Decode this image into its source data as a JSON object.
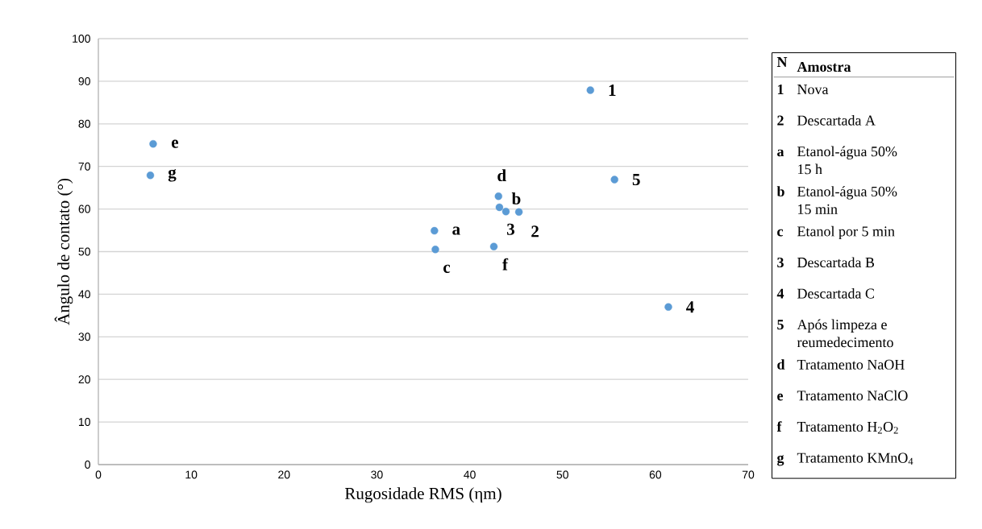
{
  "chart_data": {
    "type": "scatter",
    "xlabel": "Rugosidade RMS (ηm)",
    "ylabel": "Ângulo de contato (°)",
    "x": [
      53.0,
      45.3,
      43.9,
      61.4,
      55.6,
      36.2,
      43.2,
      36.3,
      43.1,
      5.9,
      42.6,
      5.6
    ],
    "values": [
      87.9,
      59.3,
      59.4,
      37.0,
      66.9,
      54.9,
      60.4,
      50.5,
      63.0,
      75.3,
      51.2,
      67.9
    ],
    "color": "#5b9bd5",
    "xlim": [
      0,
      70
    ],
    "ylim": [
      0,
      100
    ],
    "xticks": [
      0,
      10,
      20,
      30,
      40,
      50,
      60,
      70
    ],
    "yticks": [
      0,
      10,
      20,
      30,
      40,
      50,
      60,
      70,
      80,
      90,
      100
    ],
    "grid": "y",
    "annotations": [
      {
        "text": "1",
        "x": 53.0,
        "y": 87.9
      },
      {
        "text": "2",
        "x": 45.3,
        "y": 59.3
      },
      {
        "text": "3",
        "x": 43.9,
        "y": 59.4
      },
      {
        "text": "4",
        "x": 61.4,
        "y": 37.0
      },
      {
        "text": "5",
        "x": 55.6,
        "y": 66.9
      },
      {
        "text": "a",
        "x": 36.2,
        "y": 54.9
      },
      {
        "text": "b",
        "x": 43.2,
        "y": 60.4
      },
      {
        "text": "c",
        "x": 36.3,
        "y": 50.5
      },
      {
        "text": "d",
        "x": 43.1,
        "y": 63.0
      },
      {
        "text": "e",
        "x": 5.9,
        "y": 75.3
      },
      {
        "text": "f",
        "x": 42.6,
        "y": 51.2
      },
      {
        "text": "g",
        "x": 5.6,
        "y": 67.9
      },
      "N",
      "Amostra",
      "1",
      "Nova",
      "2",
      "Descartada A",
      "a",
      "Etanol-água 50% 15 h",
      "b",
      "Etanol-água 50% 15 min",
      "c",
      "Etanol por 5 min",
      "3",
      "Descartada B",
      "4",
      "Descartada C",
      "5",
      "Após limpeza e reumedecimento",
      "d",
      "Tratamento NaOH",
      "e",
      "Tratamento NaClO",
      "f",
      "Tratamento H$_{2}$O$_{2}$",
      "g",
      "Tratamento KMnO$_{4}$"
    ]
  }
}
